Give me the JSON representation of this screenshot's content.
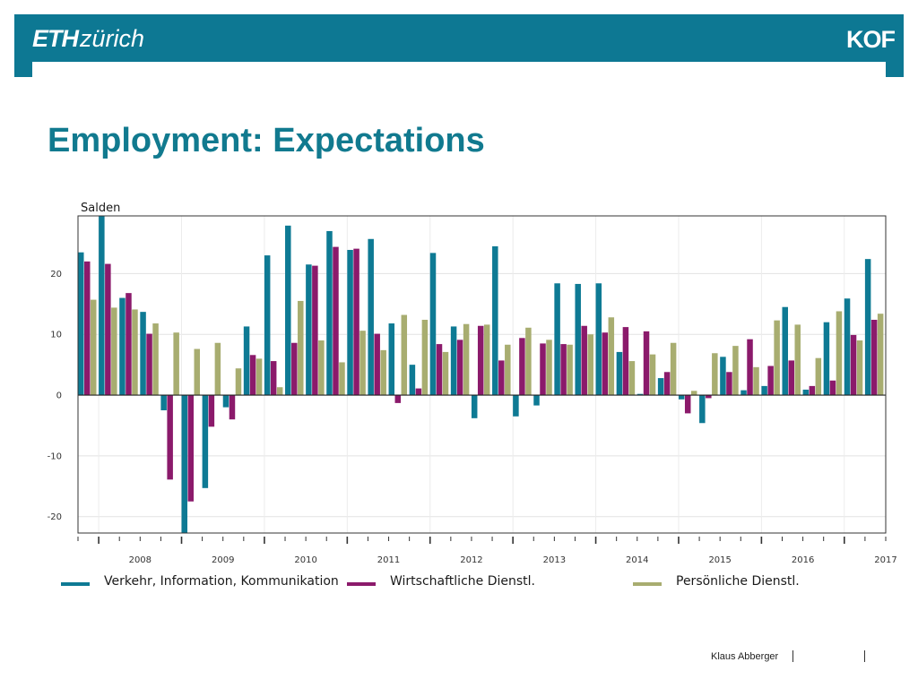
{
  "header": {
    "logo_eth": "ETH",
    "logo_zurich": "zürich",
    "logo_kof": "KOF"
  },
  "page": {
    "title": "Employment: Expectations"
  },
  "footer": {
    "author": "Klaus Abberger"
  },
  "colors": {
    "header_bg": "#0d7893",
    "title": "#117a8f",
    "series1": "#0e7a94",
    "series2": "#8b1a6b",
    "series3": "#a8ad70"
  },
  "chart_data": {
    "type": "bar",
    "ylabel": "Salden",
    "ylim": [
      -22.7,
      29.5
    ],
    "yticks": [
      -20,
      -10,
      0,
      10,
      20
    ],
    "grid": true,
    "legend_position": "bottom",
    "year_labels": [
      "2008",
      "2009",
      "2010",
      "2011",
      "2012",
      "2013",
      "2014",
      "2015",
      "2016",
      "2017"
    ],
    "categories": [
      "2007Q4",
      "2008Q1",
      "2008Q2",
      "2008Q3",
      "2008Q4",
      "2009Q1",
      "2009Q2",
      "2009Q3",
      "2009Q4",
      "2010Q1",
      "2010Q2",
      "2010Q3",
      "2010Q4",
      "2011Q1",
      "2011Q2",
      "2011Q3",
      "2011Q4",
      "2012Q1",
      "2012Q2",
      "2012Q3",
      "2012Q4",
      "2013Q1",
      "2013Q2",
      "2013Q3",
      "2013Q4",
      "2014Q1",
      "2014Q2",
      "2014Q3",
      "2014Q4",
      "2015Q1",
      "2015Q2",
      "2015Q3",
      "2015Q4",
      "2016Q1",
      "2016Q2",
      "2016Q3",
      "2016Q4",
      "2017Q1",
      "2017Q2"
    ],
    "series": [
      {
        "name": "Verkehr, Information, Kommunikation",
        "color": "#0e7a94",
        "values": [
          23.5,
          29.5,
          16.0,
          13.7,
          -2.5,
          -22.7,
          -15.3,
          -2.0,
          11.3,
          23.0,
          27.9,
          21.5,
          27.0,
          23.9,
          25.7,
          11.8,
          5.0,
          23.4,
          11.3,
          -3.8,
          24.5,
          -3.5,
          -1.7,
          18.4,
          18.3,
          18.4,
          7.1,
          0.2,
          2.8,
          -0.7,
          -4.6,
          6.3,
          0.8,
          1.5,
          14.5,
          0.9,
          12.0,
          15.9,
          22.4
        ]
      },
      {
        "name": "Wirtschaftliche Dienstl.",
        "color": "#8b1a6b",
        "values": [
          22.0,
          21.6,
          16.8,
          10.1,
          -13.9,
          -17.5,
          -5.2,
          -4.0,
          6.6,
          5.6,
          8.6,
          21.3,
          24.4,
          24.1,
          10.1,
          -1.3,
          1.1,
          8.4,
          9.1,
          11.4,
          5.7,
          9.4,
          8.5,
          8.4,
          11.4,
          10.3,
          11.2,
          10.5,
          3.8,
          -3.0,
          -0.5,
          3.8,
          9.2,
          4.8,
          5.7,
          1.5,
          2.4,
          9.9,
          12.4
        ]
      },
      {
        "name": "Persönliche Dienstl.",
        "color": "#a8ad70",
        "values": [
          15.7,
          14.4,
          14.1,
          11.8,
          10.3,
          7.6,
          8.6,
          4.4,
          6.0,
          1.3,
          15.5,
          9.0,
          5.4,
          10.6,
          7.4,
          13.2,
          12.4,
          7.1,
          11.7,
          11.6,
          8.3,
          11.1,
          9.1,
          8.3,
          10.0,
          12.8,
          5.6,
          6.7,
          8.6,
          0.7,
          6.9,
          8.1,
          4.6,
          12.3,
          11.6,
          6.1,
          13.8,
          9.0,
          13.4
        ]
      }
    ]
  }
}
